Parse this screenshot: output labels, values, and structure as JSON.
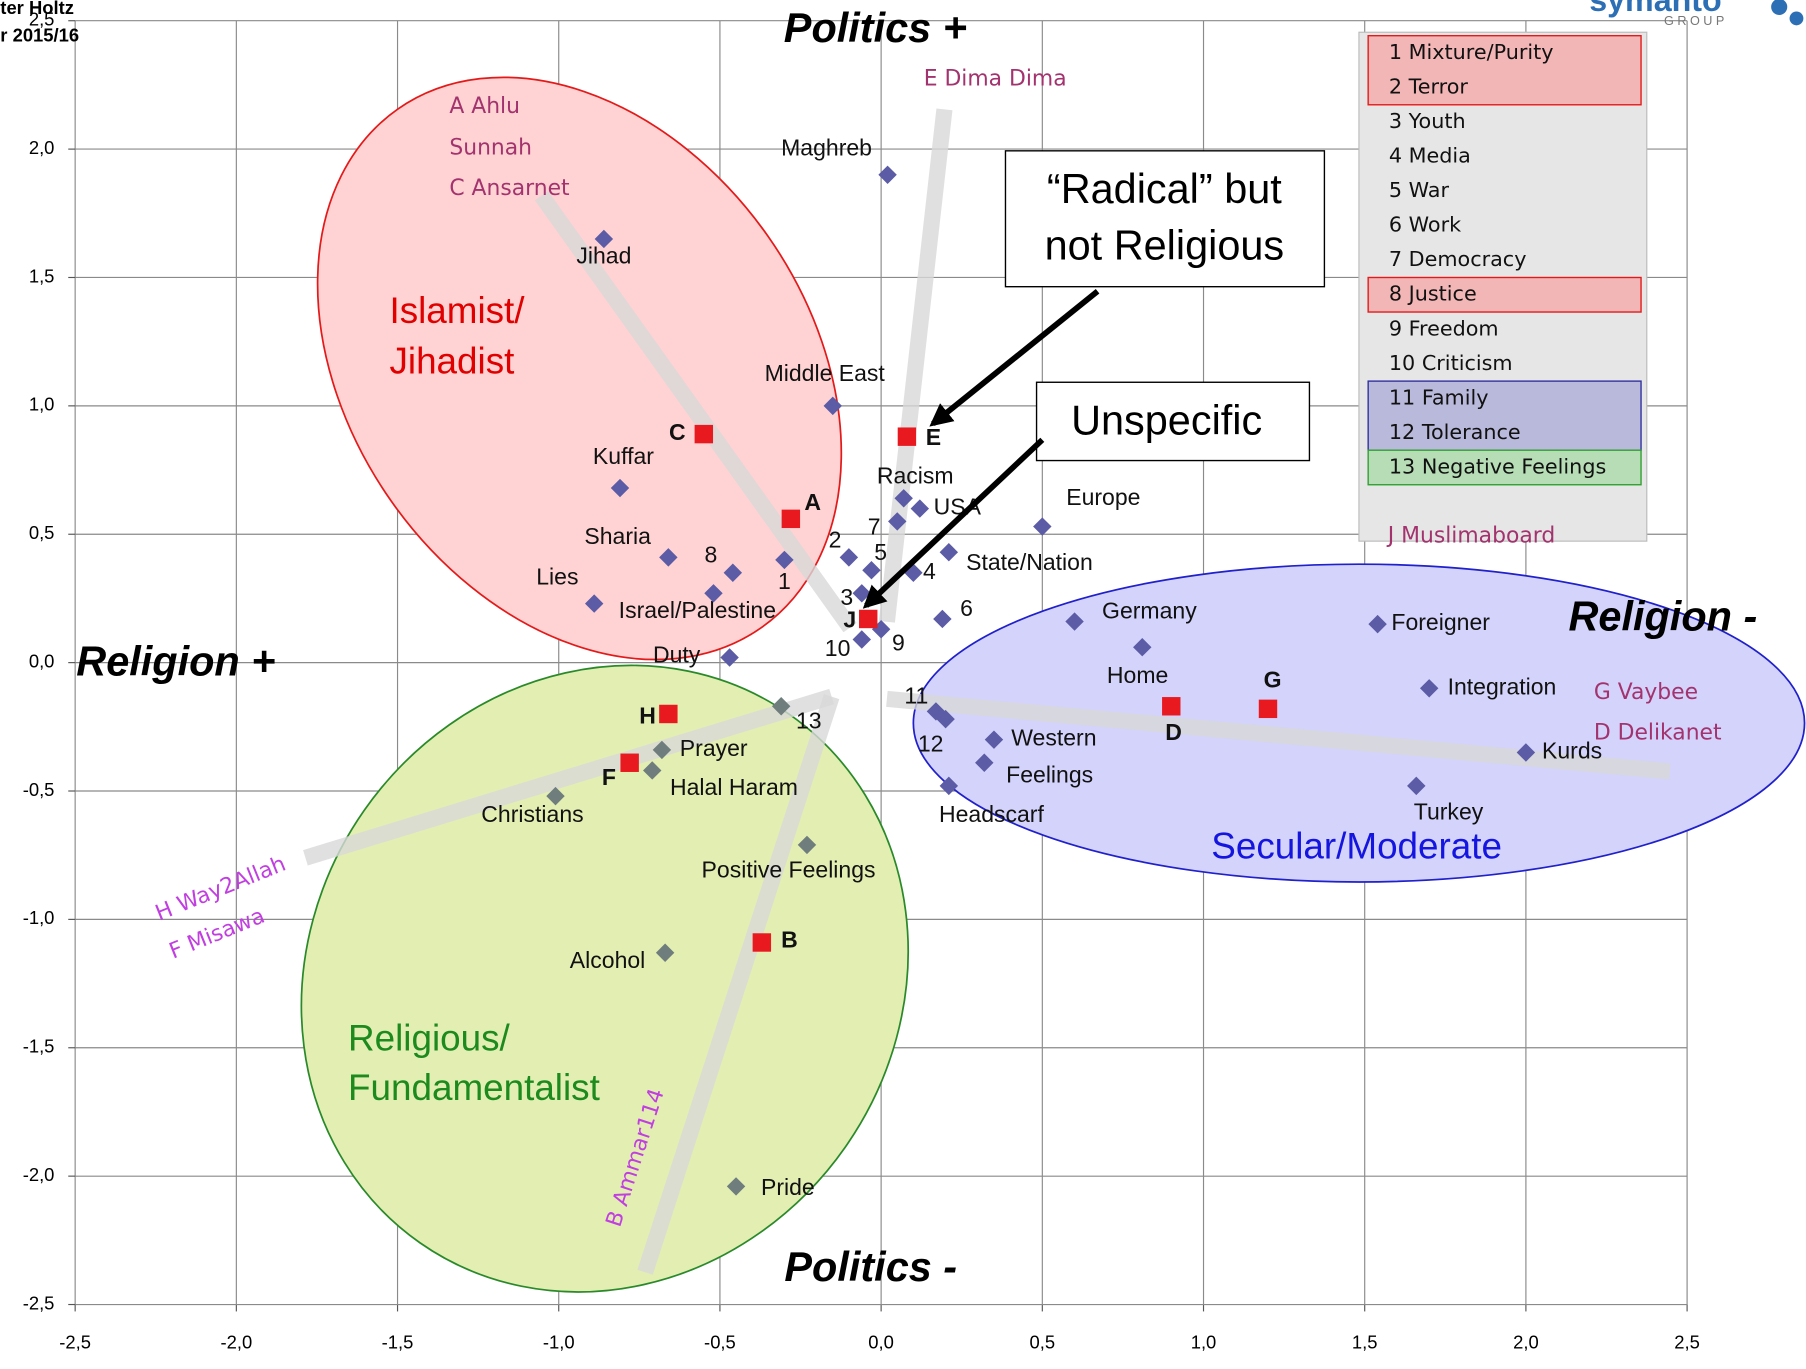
{
  "chart_data": {
    "type": "scatter",
    "xlim": [
      -2.5,
      2.5
    ],
    "ylim": [
      -2.5,
      2.5
    ],
    "xticks": [
      {
        "value": -2.5,
        "label": "-2,5"
      },
      {
        "value": -2,
        "label": "-2,0"
      },
      {
        "value": -1.5,
        "label": "-1,5"
      },
      {
        "value": -1,
        "label": "-1,0"
      },
      {
        "value": -0.5,
        "label": "-0,5"
      },
      {
        "value": 0,
        "label": "0,0"
      },
      {
        "value": 0.5,
        "label": "0,5"
      },
      {
        "value": 1,
        "label": "1,0"
      },
      {
        "value": 1.5,
        "label": "1,5"
      },
      {
        "value": 2,
        "label": "2,0"
      },
      {
        "value": 2.5,
        "label": "2,5"
      }
    ],
    "yticks": [
      {
        "value": -2.5,
        "label": "-2,5"
      },
      {
        "value": -2,
        "label": "-2,0"
      },
      {
        "value": -1.5,
        "label": "-1,5"
      },
      {
        "value": -1,
        "label": "-1,0"
      },
      {
        "value": -0.5,
        "label": "-0,5"
      },
      {
        "value": 0,
        "label": "0,0"
      },
      {
        "value": 0.5,
        "label": "0,5"
      },
      {
        "value": 1,
        "label": "1,0"
      },
      {
        "value": 1.5,
        "label": "1,5"
      },
      {
        "value": 2,
        "label": "2,0"
      },
      {
        "value": 2.5,
        "label": "2,5"
      }
    ],
    "grid": true,
    "series": [
      {
        "color": "#5b5ba6",
        "marker": "diamond",
        "labels": [
          "Maghreb",
          "Jihad",
          "Middle East",
          "Kuffar",
          "Sharia",
          "8",
          "1",
          "Lies",
          "Israel/Palestine",
          "Duty",
          "Racism",
          "USA",
          "7",
          "2",
          "5",
          "4",
          "State/Nation",
          "Europe",
          "3",
          "6",
          "9",
          "10",
          "Germany",
          "Home",
          "Foreigner",
          "Integration",
          "Kurds",
          "Turkey",
          "11",
          "12",
          "Western",
          "Feelings",
          "Headscarf"
        ],
        "x": [
          0.02,
          -0.86,
          -0.15,
          -0.81,
          -0.66,
          -0.46,
          -0.3,
          -0.89,
          -0.52,
          -0.47,
          0.07,
          0.12,
          0.05,
          -0.1,
          -0.03,
          0.1,
          0.21,
          0.5,
          -0.06,
          0.19,
          0.0,
          -0.06,
          0.6,
          0.81,
          1.54,
          1.7,
          2.0,
          1.66,
          0.17,
          0.2,
          0.35,
          0.32,
          0.21
        ],
        "y": [
          1.9,
          1.65,
          1.0,
          0.68,
          0.41,
          0.35,
          0.4,
          0.23,
          0.27,
          0.02,
          0.64,
          0.6,
          0.55,
          0.41,
          0.36,
          0.35,
          0.43,
          0.53,
          0.27,
          0.17,
          0.13,
          0.09,
          0.16,
          0.06,
          0.15,
          -0.1,
          -0.35,
          -0.48,
          -0.19,
          -0.22,
          -0.3,
          -0.39,
          -0.48
        ]
      },
      {
        "color": "#6f7d7d",
        "marker": "diamond",
        "labels": [
          "13",
          "Prayer",
          "Halal Haram",
          "Christians",
          "Positive Feelings",
          "Alcohol",
          "Pride"
        ],
        "x": [
          -0.31,
          -0.68,
          -0.71,
          -1.01,
          -0.23,
          -0.67,
          -0.45
        ],
        "y": [
          -0.17,
          -0.34,
          -0.42,
          -0.52,
          -0.71,
          -1.13,
          -2.04
        ]
      },
      {
        "color": "#e81a20",
        "marker": "square",
        "labels": [
          "C",
          "A",
          "E",
          "J",
          "H",
          "F",
          "B",
          "D",
          "G"
        ],
        "x": [
          -0.55,
          -0.28,
          0.08,
          -0.04,
          -0.66,
          -0.78,
          -0.37,
          0.9,
          1.2
        ],
        "y": [
          0.89,
          0.56,
          0.88,
          0.17,
          -0.2,
          -0.39,
          -1.09,
          -0.17,
          -0.18
        ]
      }
    ],
    "annotations": {
      "politics_plus": "Politics +",
      "politics_minus": "Politics -",
      "religion_plus": "Religion +",
      "religion_minus": "Religion -",
      "islamist": [
        "Islamist/",
        "Jihadist"
      ],
      "religious": [
        "Religious/",
        "Fundamentalist"
      ],
      "secular": "Secular/Moderate",
      "radical": [
        "“Radical” but",
        "not Religious"
      ],
      "unspecific": "Unspecific"
    },
    "forums": {
      "a_c": [
        "A Ahlu",
        "Sunnah",
        "C Ansarnet"
      ],
      "e": "E Dima Dima",
      "h": "H Way2Allah",
      "f": "F Misawa",
      "b": "B Ammar114",
      "g": "G Vaybee",
      "d": "D Delikanet"
    },
    "legend": [
      {
        "label": "1 Mixture/Purity",
        "highlight": "red"
      },
      {
        "label": "2 Terror",
        "highlight": "red"
      },
      {
        "label": "3 Youth"
      },
      {
        "label": "4 Media"
      },
      {
        "label": "5 War"
      },
      {
        "label": "6 Work"
      },
      {
        "label": "7 Democracy"
      },
      {
        "label": "8 Justice",
        "highlight": "red"
      },
      {
        "label": "9 Freedom"
      },
      {
        "label": "10 Criticism"
      },
      {
        "label": "11 Family",
        "highlight": "blue"
      },
      {
        "label": "12 Tolerance",
        "highlight": "blue"
      },
      {
        "label": "13 Negative Feelings",
        "highlight": "green"
      }
    ],
    "legend_footer": "J Muslimaboard",
    "author": [
      "ter Holtz",
      "r 2015/16"
    ],
    "logo": [
      "symanto",
      "GROUP"
    ]
  }
}
